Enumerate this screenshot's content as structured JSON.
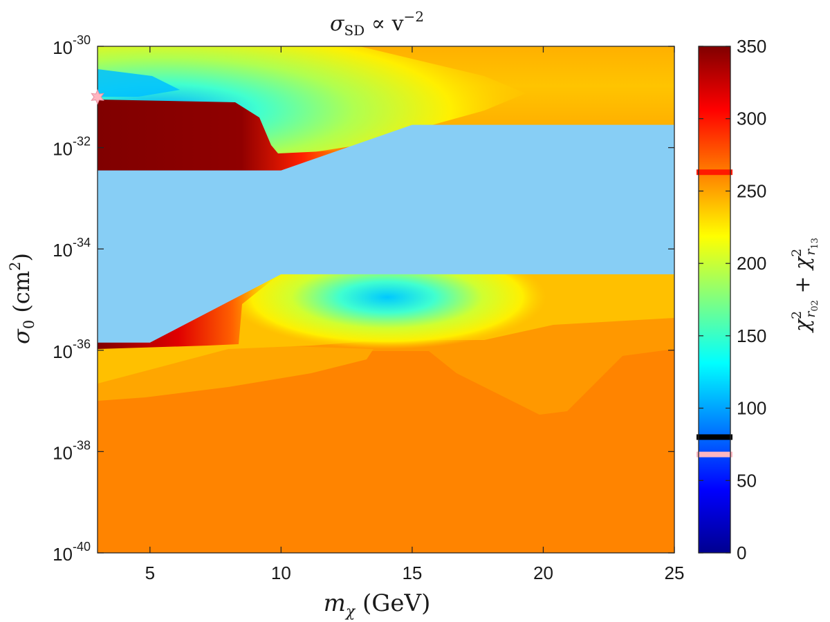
{
  "chart_data": {
    "type": "heatmap",
    "title": {
      "base": "σ",
      "sub": "SD",
      "middle": " ∝ v",
      "sup": "−2"
    },
    "xlabel": {
      "base": "m",
      "sub": "χ",
      "rest": " (GeV)"
    },
    "ylabel": {
      "base": "σ",
      "sub": "0",
      "rest": " (cm",
      "sup": "2",
      "end": ")"
    },
    "colorbar_label": {
      "part1": "χ",
      "sup1": "2",
      "sub1": "r",
      "subsub1": "02",
      "plus": " + ",
      "part2": "χ",
      "sup2": "2",
      "sub2": "r",
      "subsub2": "13"
    },
    "x_range": [
      3,
      25
    ],
    "x_ticks": [
      5,
      10,
      15,
      20,
      25
    ],
    "x_tick_labels": [
      "5",
      "10",
      "15",
      "20",
      "25"
    ],
    "y_scale": "log",
    "y_range_exponent": [
      -40,
      -30
    ],
    "y_ticks": [
      {
        "value": 1e-30,
        "base": "10",
        "exp": "-30"
      },
      {
        "value": 1e-32,
        "base": "10",
        "exp": "-32"
      },
      {
        "value": 1e-34,
        "base": "10",
        "exp": "-34"
      },
      {
        "value": 1e-36,
        "base": "10",
        "exp": "-36"
      },
      {
        "value": 1e-38,
        "base": "10",
        "exp": "-38"
      },
      {
        "value": 1e-40,
        "base": "10",
        "exp": "-40"
      }
    ],
    "colorbar_range": [
      0,
      350
    ],
    "colorbar_ticks": [
      "0",
      "50",
      "100",
      "150",
      "200",
      "250",
      "300",
      "350"
    ],
    "colormap": "jet",
    "excluded_region_color": "#87CEF5",
    "excluded_region_boundary_log10": [
      {
        "x": 3,
        "upper": -32.45,
        "lower": -35.85
      },
      {
        "x": 5,
        "upper": -32.45,
        "lower": -35.85
      },
      {
        "x": 10,
        "upper": -32.45,
        "lower": -34.5
      },
      {
        "x": 15,
        "upper": -31.55,
        "lower": -34.5
      },
      {
        "x": 25,
        "upper": -31.55,
        "lower": -34.5
      }
    ],
    "colorbar_markers": [
      {
        "value": 263,
        "color": "#FF1A00"
      },
      {
        "value": 80,
        "color": "#000000"
      },
      {
        "value": 68,
        "color": "#FFB6C1"
      }
    ],
    "best_fit_marker": {
      "x": 3.0,
      "y_log10": -31.0,
      "color": "#FFB6C1",
      "symbol": "star"
    },
    "grid": false,
    "legend": "none"
  }
}
